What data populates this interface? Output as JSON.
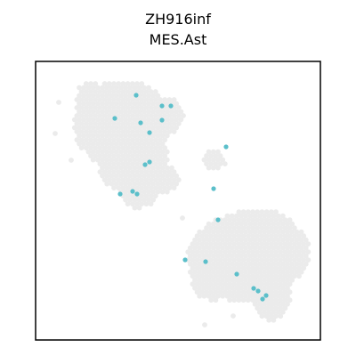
{
  "chart_data": {
    "type": "scatter",
    "title": "ZH916inf",
    "subtitle": "MES.Ast",
    "xlabel": "",
    "ylabel": "",
    "grid": false,
    "axes_ticks": false,
    "colors": {
      "background_spots": "#ebebeb",
      "highlight": "#5bbfca",
      "frame": "#000000"
    },
    "series": [
      {
        "points": [
          [
            153,
            107
          ],
          [
            129,
            133
          ],
          [
            158,
            138
          ],
          [
            182,
            119
          ],
          [
            192,
            119
          ],
          [
            182,
            135
          ],
          [
            168,
            149
          ],
          [
            254,
            165
          ],
          [
            163,
            185
          ],
          [
            168,
            182
          ],
          [
            135,
            218
          ],
          [
            149,
            215
          ],
          [
            154,
            218
          ],
          [
            240,
            212
          ],
          [
            245,
            247
          ],
          [
            208,
            292
          ],
          [
            231,
            294
          ],
          [
            266,
            308
          ],
          [
            285,
            324
          ],
          [
            290,
            327
          ],
          [
            299,
            332
          ],
          [
            295,
            336
          ]
        ]
      }
    ]
  }
}
